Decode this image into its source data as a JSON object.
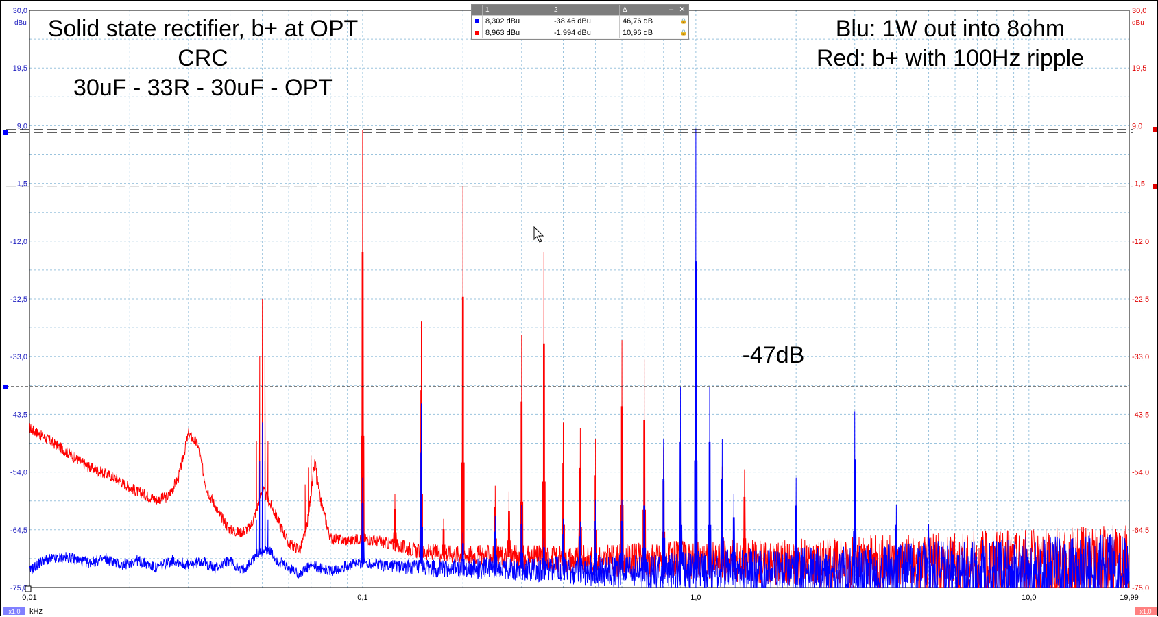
{
  "chart_data": {
    "type": "line",
    "x_scale": "log",
    "xlim": [
      0.01,
      19.99
    ],
    "ylim": [
      -75.0,
      30.0
    ],
    "x_unit": "kHz",
    "y_unit": "dBu",
    "y_ticks": [
      "30,0",
      "19,5",
      "9,0",
      "-1,5",
      "-12,0",
      "-22,5",
      "-33,0",
      "-43,5",
      "-54,0",
      "-64,5",
      "-75,0"
    ],
    "y_tick_values": [
      30.0,
      19.5,
      9.0,
      -1.5,
      -12.0,
      -22.5,
      -33.0,
      -43.5,
      -54.0,
      -64.5,
      -75.0
    ],
    "x_tick_labels": [
      "0,01",
      "0,1",
      "1,0",
      "10,0",
      "19,99"
    ],
    "x_tick_values": [
      0.01,
      0.1,
      1.0,
      10.0,
      19.99
    ],
    "grid": true,
    "title_lines": [
      "Solid state rectifier, b+ at OPT",
      "CRC",
      "30uF - 33R - 30uF - OPT"
    ],
    "legend_lines": [
      "Blu: 1W out into 8ohm",
      "Red: b+ with 100Hz ripple"
    ],
    "annotation": "-47dB",
    "cursor_levels": [
      8.302,
      -1.994,
      -38.46
    ],
    "series": [
      {
        "name": "Red: b+ with 100Hz ripple",
        "color": "#ff0000",
        "noise_floor": [
          [
            0.01,
            -46.0
          ],
          [
            0.012,
            -49.0
          ],
          [
            0.015,
            -53.0
          ],
          [
            0.018,
            -55.0
          ],
          [
            0.021,
            -57.5
          ],
          [
            0.024,
            -59.0
          ],
          [
            0.026,
            -58.5
          ],
          [
            0.028,
            -55.0
          ],
          [
            0.03,
            -47.0
          ],
          [
            0.032,
            -49.0
          ],
          [
            0.034,
            -57.0
          ],
          [
            0.037,
            -61.5
          ],
          [
            0.04,
            -64.5
          ],
          [
            0.043,
            -65.0
          ],
          [
            0.046,
            -64.0
          ],
          [
            0.048,
            -61.0
          ],
          [
            0.05,
            -57.0
          ],
          [
            0.055,
            -62.0
          ],
          [
            0.06,
            -67.0
          ],
          [
            0.065,
            -68.0
          ],
          [
            0.068,
            -64.0
          ],
          [
            0.07,
            -58.0
          ],
          [
            0.072,
            -52.0
          ],
          [
            0.074,
            -58.0
          ],
          [
            0.08,
            -66.0
          ],
          [
            0.09,
            -66.5
          ],
          [
            0.1,
            -66.0
          ],
          [
            0.12,
            -67.0
          ],
          [
            0.15,
            -68.5
          ],
          [
            0.2,
            -69.0
          ],
          [
            0.3,
            -69.5
          ],
          [
            0.5,
            -70.0
          ],
          [
            1.0,
            -70.0
          ],
          [
            2.0,
            -70.5
          ],
          [
            5.0,
            -70.5
          ],
          [
            10.0,
            -70.5
          ],
          [
            19.99,
            -70.5
          ]
        ],
        "peaks": [
          [
            0.05,
            -22.5
          ],
          [
            0.07,
            -51.0
          ],
          [
            0.1,
            8.3
          ],
          [
            0.125,
            -58.0
          ],
          [
            0.15,
            -26.5
          ],
          [
            0.175,
            -62.5
          ],
          [
            0.2,
            -2.0
          ],
          [
            0.25,
            -56.5
          ],
          [
            0.275,
            -57.5
          ],
          [
            0.3,
            -29.0
          ],
          [
            0.35,
            -14.0
          ],
          [
            0.4,
            -45.0
          ],
          [
            0.45,
            -46.0
          ],
          [
            0.5,
            -48.0
          ],
          [
            0.6,
            -30.0
          ],
          [
            0.7,
            -33.5
          ],
          [
            0.8,
            -49.5
          ],
          [
            0.9,
            -54.0
          ],
          [
            1.0,
            -51.0
          ],
          [
            1.2,
            -53.0
          ],
          [
            1.4,
            -53.5
          ]
        ]
      },
      {
        "name": "Blu: 1W out into 8ohm",
        "color": "#0000ff",
        "noise_floor": [
          [
            0.01,
            -72.0
          ],
          [
            0.011,
            -70.0
          ],
          [
            0.013,
            -69.5
          ],
          [
            0.015,
            -70.5
          ],
          [
            0.017,
            -69.8
          ],
          [
            0.019,
            -71.0
          ],
          [
            0.021,
            -70.0
          ],
          [
            0.024,
            -71.5
          ],
          [
            0.027,
            -70.0
          ],
          [
            0.03,
            -71.0
          ],
          [
            0.033,
            -70.2
          ],
          [
            0.036,
            -71.5
          ],
          [
            0.04,
            -70.0
          ],
          [
            0.043,
            -72.0
          ],
          [
            0.046,
            -70.5
          ],
          [
            0.048,
            -69.0
          ],
          [
            0.052,
            -68.0
          ],
          [
            0.055,
            -70.0
          ],
          [
            0.06,
            -71.5
          ],
          [
            0.065,
            -72.5
          ],
          [
            0.07,
            -71.0
          ],
          [
            0.08,
            -72.0
          ],
          [
            0.09,
            -71.0
          ],
          [
            0.1,
            -70.5
          ],
          [
            0.12,
            -71.0
          ],
          [
            0.15,
            -71.5
          ],
          [
            0.2,
            -71.5
          ],
          [
            0.3,
            -71.5
          ],
          [
            0.5,
            -72.0
          ],
          [
            1.0,
            -72.0
          ],
          [
            2.0,
            -72.0
          ],
          [
            5.0,
            -72.0
          ],
          [
            10.0,
            -72.0
          ],
          [
            19.99,
            -72.0
          ]
        ],
        "peaks": [
          [
            0.05,
            -45.0
          ],
          [
            0.1,
            -55.0
          ],
          [
            0.15,
            -41.5
          ],
          [
            0.2,
            -65.0
          ],
          [
            0.25,
            -62.0
          ],
          [
            0.3,
            -60.0
          ],
          [
            0.35,
            -66.0
          ],
          [
            0.4,
            -62.5
          ],
          [
            0.45,
            -63.0
          ],
          [
            0.5,
            -59.0
          ],
          [
            0.6,
            -59.0
          ],
          [
            0.7,
            -55.0
          ],
          [
            0.8,
            -48.0
          ],
          [
            0.9,
            -38.5
          ],
          [
            1.0,
            8.5
          ],
          [
            1.1,
            -38.5
          ],
          [
            1.2,
            -48.0
          ],
          [
            1.3,
            -58.0
          ],
          [
            2.0,
            -55.0
          ],
          [
            3.0,
            -43.0
          ],
          [
            4.0,
            -60.0
          ],
          [
            5.0,
            -63.5
          ]
        ]
      }
    ]
  },
  "axes": {
    "left_unit": "dBu",
    "right_unit": "dBu",
    "x_unit_label": "kHz",
    "x_zoom_left": "x1,0",
    "x_zoom_right": "x1,0",
    "colors": {
      "left_axis": "#2020c0",
      "right_axis": "#e00000",
      "grid": "#9ac3dd"
    }
  },
  "cursor_table": {
    "headers": [
      "1",
      "2",
      "Δ"
    ],
    "rows": [
      {
        "swatch": "#0000ff",
        "c1": "8,302 dBu",
        "c2": "-38,46 dBu",
        "delta": "46,76 dB"
      },
      {
        "swatch": "#ff0000",
        "c1": "8,963 dBu",
        "c2": "-1,994 dBu",
        "delta": "10,96 dB"
      }
    ],
    "min_glyph": "–",
    "close_glyph": "✕",
    "lock_glyph": "🔒"
  }
}
